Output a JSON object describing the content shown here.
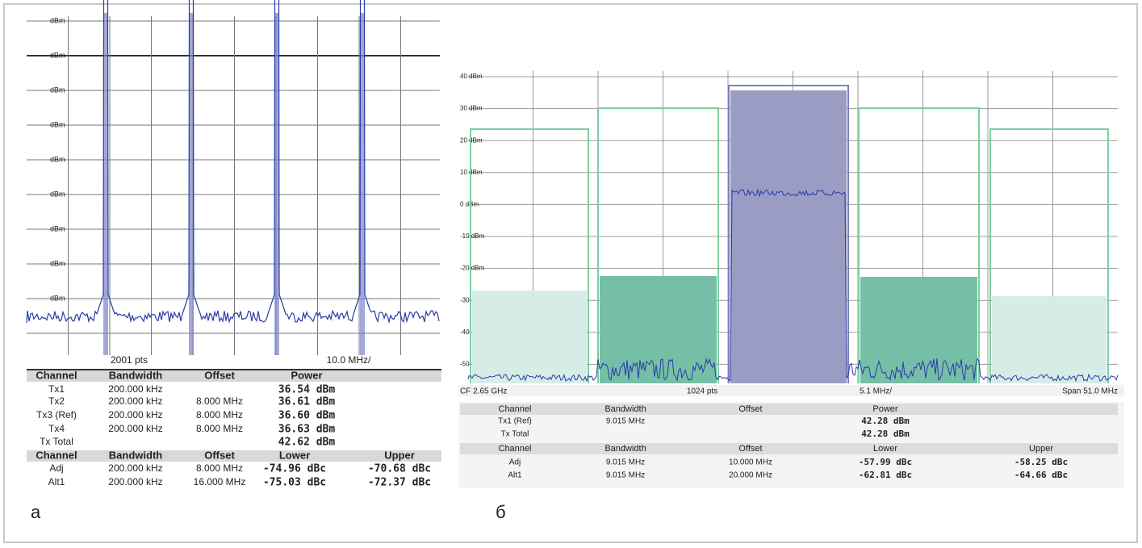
{
  "panel_a": {
    "label": "а",
    "y_labels": [
      "dBm",
      "dBm",
      "dBm",
      "dBm",
      "dBm",
      "dBm",
      "dBm",
      "dBm",
      "dBm"
    ],
    "footer": [
      "2001 pts",
      "10.0 MHz/"
    ],
    "table": {
      "header": [
        "Channel",
        "Bandwidth",
        "Offset",
        "Power"
      ],
      "rows": [
        {
          "channel": "Tx1",
          "bandwidth": "200.000 kHz",
          "power": "36.54 dBm"
        },
        {
          "channel": "Tx2",
          "bandwidth": "200.000 kHz",
          "offset": "8.000 MHz",
          "power": "36.61 dBm"
        },
        {
          "channel": "Tx3 (Ref)",
          "bandwidth": "200.000 kHz",
          "offset": "8.000 MHz",
          "power": "36.60 dBm"
        },
        {
          "channel": "Tx4",
          "bandwidth": "200.000 kHz",
          "offset": "8.000 MHz",
          "power": "36.63 dBm"
        },
        {
          "channel": "Tx Total",
          "power": "42.62 dBm"
        }
      ],
      "header2": [
        "Channel",
        "Bandwidth",
        "Offset",
        "Lower",
        "Upper"
      ],
      "rows2": [
        {
          "channel": "Adj",
          "bandwidth": "200.000 kHz",
          "offset": "8.000 MHz",
          "lower": "-74.96 dBc",
          "upper": "-70.68 dBc"
        },
        {
          "channel": "Alt1",
          "bandwidth": "200.000 kHz",
          "offset": "16.000 MHz",
          "lower": "-75.03 dBc",
          "upper": "-72.37 dBc"
        }
      ]
    }
  },
  "panel_b": {
    "label": "б",
    "y_labels": [
      "40 dBm",
      "30 dBm",
      "20 dBm",
      "10 dBm",
      "0 dBm",
      "-10 dBm",
      "-20 dBm",
      "-30",
      "-40",
      "-50"
    ],
    "footer": [
      "CF 2.65 GHz",
      "1024 pts",
      "5.1 MHz/",
      "Span 51.0 MHz"
    ],
    "table": {
      "header": [
        "Channel",
        "Bandwidth",
        "Offset",
        "Power"
      ],
      "rows": [
        {
          "channel": "Tx1 (Ref)",
          "bandwidth": "9.015 MHz",
          "power": "42.28 dBm"
        },
        {
          "channel": "Tx Total",
          "power": "42.28 dBm"
        }
      ],
      "header2": [
        "Channel",
        "Bandwidth",
        "Offset",
        "Lower",
        "Upper"
      ],
      "rows2": [
        {
          "channel": "Adj",
          "bandwidth": "9.015 MHz",
          "offset": "10.000 MHz",
          "lower": "-57.99 dBc",
          "upper": "-58.25 dBc"
        },
        {
          "channel": "Alt1",
          "bandwidth": "9.015 MHz",
          "offset": "20.000 MHz",
          "lower": "-62.81 dBc",
          "upper": "-64.66 dBc"
        }
      ]
    }
  }
}
